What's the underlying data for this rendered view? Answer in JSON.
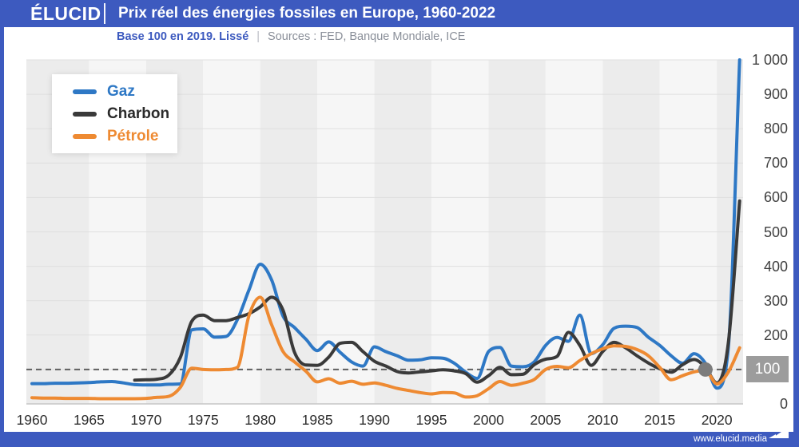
{
  "header": {
    "logo": "ÉLUCID",
    "title": "Prix réel des énergies fossiles en Europe, 1960-2022"
  },
  "subtitle": {
    "base": "Base 100 en 2019. Lissé",
    "separator": "|",
    "sources": "Sources : FED, Banque Mondiale, ICE"
  },
  "footer": {
    "url": "www.elucid.media"
  },
  "colors": {
    "brand_blue": "#3D5ABF",
    "band_dark": "#ECECEC",
    "band_light": "#F6F6F6",
    "gridline": "#DFDFDF",
    "axis_line": "#C6C6C6",
    "baseline_dash": "#5F5F5F",
    "badge_gray": "#9C9C9C",
    "marker_gray": "#7C7C7C"
  },
  "chart_data": {
    "type": "line",
    "title": "Prix réel des énergies fossiles en Europe, 1960-2022",
    "xlabel": "",
    "ylabel": "",
    "x_range": [
      1959.5,
      2022.3
    ],
    "y_range": [
      0,
      1000
    ],
    "grid": "horizontal",
    "legend_position": "top-left",
    "x_ticks": [
      1960,
      1965,
      1970,
      1975,
      1980,
      1985,
      1990,
      1995,
      2000,
      2005,
      2010,
      2015,
      2020
    ],
    "y_ticks": [
      {
        "value": 1000,
        "label": "1 000"
      },
      {
        "value": 900,
        "label": "900"
      },
      {
        "value": 800,
        "label": "800"
      },
      {
        "value": 700,
        "label": "700"
      },
      {
        "value": 600,
        "label": "600"
      },
      {
        "value": 500,
        "label": "500"
      },
      {
        "value": 400,
        "label": "400"
      },
      {
        "value": 300,
        "label": "300"
      },
      {
        "value": 200,
        "label": "200"
      },
      {
        "value": 100,
        "label": "100",
        "highlight": true
      },
      {
        "value": 0,
        "label": "0"
      }
    ],
    "baseline_value": 100,
    "marker": {
      "year": 2019,
      "value": 100
    },
    "series": [
      {
        "name": "Gaz",
        "color": "#2E78C5",
        "legend_text_color": "#2E78C5",
        "start_year": 1960,
        "values": [
          59,
          59,
          60,
          60,
          61,
          62,
          64,
          65,
          61,
          56,
          55,
          55,
          57,
          58,
          215,
          218,
          194,
          196,
          245,
          330,
          406,
          360,
          255,
          222,
          188,
          155,
          180,
          150,
          122,
          110,
          166,
          152,
          140,
          127,
          128,
          134,
          133,
          118,
          92,
          74,
          152,
          164,
          110,
          108,
          122,
          170,
          193,
          182,
          258,
          146,
          172,
          220,
          226,
          222,
          194,
          170,
          140,
          118,
          146,
          118,
          46,
          160,
          1000
        ]
      },
      {
        "name": "Charbon",
        "color": "#3A3A3A",
        "legend_text_color": "#2B2B2B",
        "start_year": 1969,
        "values": [
          69,
          70,
          72,
          84,
          135,
          240,
          258,
          242,
          242,
          251,
          262,
          282,
          310,
          272,
          150,
          113,
          112,
          136,
          176,
          179,
          152,
          124,
          110,
          94,
          90,
          93,
          96,
          99,
          96,
          88,
          63,
          82,
          106,
          85,
          86,
          114,
          130,
          138,
          208,
          170,
          112,
          152,
          179,
          163,
          140,
          119,
          102,
          92,
          114,
          129,
          106,
          61,
          175,
          590
        ]
      },
      {
        "name": "Pétrole",
        "color": "#EE8A32",
        "legend_text_color": "#EE8A32",
        "start_year": 1960,
        "values": [
          18,
          17,
          17,
          16,
          16,
          16,
          15,
          15,
          15,
          15,
          16,
          19,
          22,
          48,
          104,
          100,
          99,
          100,
          106,
          255,
          310,
          230,
          152,
          122,
          95,
          64,
          73,
          60,
          66,
          57,
          61,
          54,
          45,
          39,
          33,
          29,
          33,
          32,
          20,
          24,
          44,
          65,
          54,
          60,
          71,
          100,
          109,
          105,
          126,
          146,
          160,
          169,
          167,
          158,
          140,
          106,
          70,
          82,
          93,
          97,
          58,
          92,
          163
        ]
      }
    ]
  }
}
